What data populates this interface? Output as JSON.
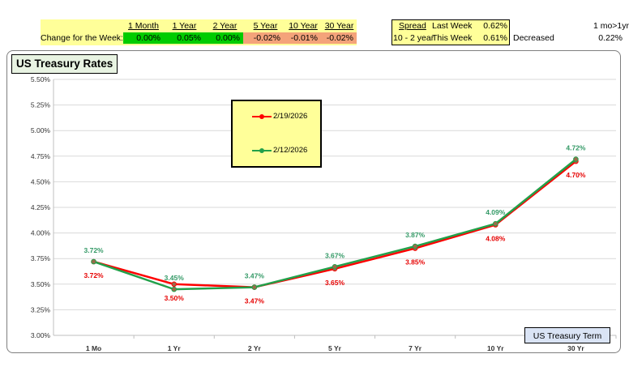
{
  "summary": {
    "row_label": "Change for the Week:",
    "columns": [
      {
        "header": "1 Month",
        "value": "0.00%",
        "color": "#00cc00"
      },
      {
        "header": "1 Year",
        "value": "0.05%",
        "color": "#00cc00"
      },
      {
        "header": "2 Year",
        "value": "0.00%",
        "color": "#00cc00"
      },
      {
        "header": "5 Year",
        "value": "-0.02%",
        "color": "#f4a37a"
      },
      {
        "header": "10 Year",
        "value": "-0.01%",
        "color": "#f4a37a"
      },
      {
        "header": "30 Year",
        "value": "-0.02%",
        "color": "#f4a37a"
      }
    ]
  },
  "spread": {
    "header": "Spread",
    "label": "10 - 2 year",
    "last_week_label": "Last Week",
    "last_week_value": "0.62%",
    "this_week_label": "This Week",
    "this_week_value": "0.61%",
    "status": "Decreased"
  },
  "side_note": {
    "label": "1 mo>1yr",
    "value": "0.22%"
  },
  "chart_data": {
    "type": "line",
    "title": "US Treasury Rates",
    "xlabel": "US Treasury Term",
    "ylabel": "",
    "categories": [
      "1 Mo",
      "1 Yr",
      "2 Yr",
      "5 Yr",
      "7 Yr",
      "10 Yr",
      "30 Yr"
    ],
    "ylim": [
      3.0,
      5.5
    ],
    "ytick_step": 0.25,
    "yticks": [
      "3.00%",
      "3.25%",
      "3.50%",
      "3.75%",
      "4.00%",
      "4.25%",
      "4.50%",
      "4.75%",
      "5.00%",
      "5.25%",
      "5.50%"
    ],
    "grid": true,
    "legend_position": "top-center",
    "series": [
      {
        "name": "2/19/2026",
        "color": "#ff0000",
        "label_color": "#e60000",
        "label_position": "below",
        "values": [
          3.72,
          3.5,
          3.47,
          3.65,
          3.85,
          4.08,
          4.7
        ],
        "labels": [
          "3.72%",
          "3.50%",
          "3.47%",
          "3.65%",
          "3.85%",
          "4.08%",
          "4.70%"
        ]
      },
      {
        "name": "2/12/2026",
        "color": "#22a04a",
        "label_color": "#339966",
        "label_position": "above",
        "values": [
          3.72,
          3.45,
          3.47,
          3.67,
          3.87,
          4.09,
          4.72
        ],
        "labels": [
          "3.72%",
          "3.45%",
          "3.47%",
          "3.67%",
          "3.87%",
          "4.09%",
          "4.72%"
        ]
      }
    ]
  }
}
